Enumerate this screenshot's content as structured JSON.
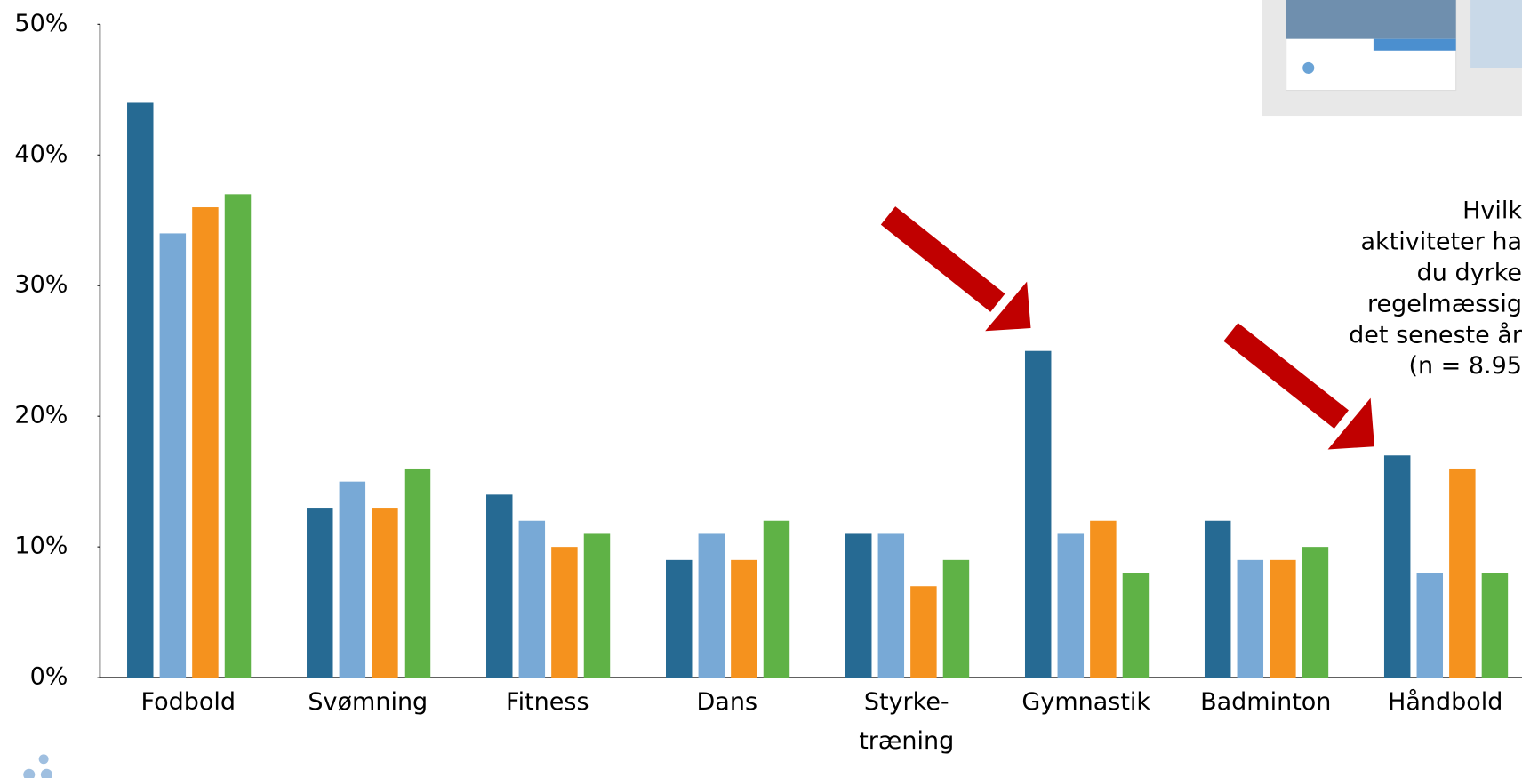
{
  "chart_data": {
    "type": "bar",
    "categories": [
      "Fodbold",
      "Svømning",
      "Fitness",
      "Dans",
      "Styrke-\ntræning",
      "Gymnastik",
      "Badminton",
      "Håndbold"
    ],
    "series": [
      {
        "color": "#266a93",
        "values": [
          44,
          13,
          14,
          9,
          11,
          25,
          12,
          17
        ]
      },
      {
        "color": "#78a9d6",
        "values": [
          34,
          15,
          12,
          11,
          11,
          11,
          9,
          8
        ]
      },
      {
        "color": "#f5921e",
        "values": [
          36,
          13,
          10,
          9,
          7,
          12,
          9,
          16
        ]
      },
      {
        "color": "#5fb246",
        "values": [
          37,
          16,
          11,
          12,
          9,
          8,
          10,
          8
        ]
      }
    ],
    "ylim": [
      0,
      50
    ],
    "yticks": [
      {
        "value": 0,
        "label": "0%"
      },
      {
        "value": 10,
        "label": "10%"
      },
      {
        "value": 20,
        "label": "20%"
      },
      {
        "value": 30,
        "label": "30%"
      },
      {
        "value": 40,
        "label": "40%"
      },
      {
        "value": 50,
        "label": "50%"
      }
    ],
    "annotation": [
      "Hvilk",
      "aktiviteter ha",
      "du dyrke",
      "regelmæssig",
      "det seneste år",
      "(n = 8.95"
    ]
  }
}
